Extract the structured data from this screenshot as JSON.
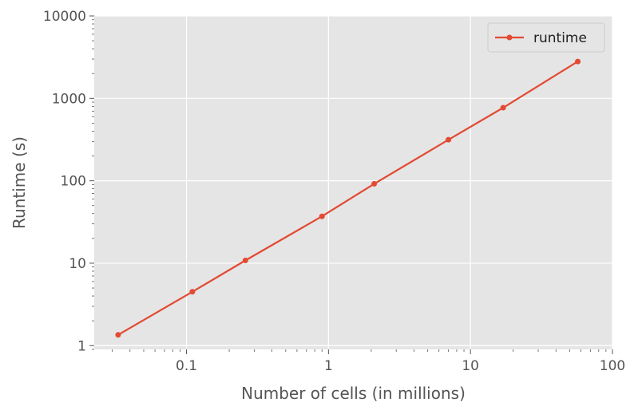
{
  "chart_data": {
    "type": "line",
    "xscale": "log",
    "yscale": "log",
    "xlabel": "Number of cells (in millions)",
    "ylabel": "Runtime (s)",
    "xlim": [
      0.0224,
      100
    ],
    "ylim": [
      0.9,
      10000
    ],
    "xticks": [
      0.1,
      1,
      10,
      100
    ],
    "xtick_labels": [
      "0.1",
      "1",
      "10",
      "100"
    ],
    "yticks": [
      1,
      10,
      100,
      1000,
      10000
    ],
    "ytick_labels": [
      "1",
      "10",
      "100",
      "1000",
      "10000"
    ],
    "grid": true,
    "legend_position": "top-right",
    "series": [
      {
        "name": "runtime",
        "color": "#e24a33",
        "x": [
          0.033,
          0.11,
          0.26,
          0.9,
          2.1,
          7.0,
          17.0,
          57.0
        ],
        "y": [
          1.35,
          4.5,
          10.8,
          37,
          92,
          315,
          770,
          2800
        ]
      }
    ]
  }
}
